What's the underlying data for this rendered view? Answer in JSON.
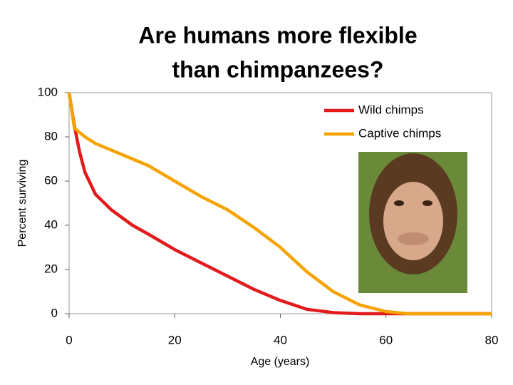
{
  "chart_data": {
    "type": "line",
    "title": [
      "Are humans more flexible",
      "than chimpanzees?"
    ],
    "x_label": "Age (years)",
    "y_label": "Percent surviving",
    "x": [
      0,
      1,
      2,
      3,
      5,
      8,
      12,
      15,
      20,
      25,
      30,
      35,
      40,
      45,
      50,
      55,
      60,
      64,
      70,
      80
    ],
    "series": [
      {
        "name": "Wild chimps",
        "color": "#e31a1c",
        "values": [
          100,
          85,
          73,
          64,
          54,
          47,
          40,
          36,
          29,
          23,
          17,
          11,
          6,
          2,
          0.5,
          0,
          0,
          0,
          0,
          0
        ]
      },
      {
        "name": "Captive chimps",
        "color": "#f5a300",
        "values": [
          100,
          84,
          82,
          80,
          77,
          74,
          70,
          67,
          60,
          53,
          47,
          39,
          30,
          19,
          10,
          4,
          1,
          0,
          0,
          0
        ]
      }
    ],
    "xlim": [
      0,
      80
    ],
    "xticks": [
      0,
      20,
      40,
      60,
      80
    ],
    "ylim": [
      0,
      100
    ],
    "yticks": [
      0,
      20,
      40,
      60,
      80,
      100
    ],
    "grid": false,
    "legend": "upper-right"
  }
}
